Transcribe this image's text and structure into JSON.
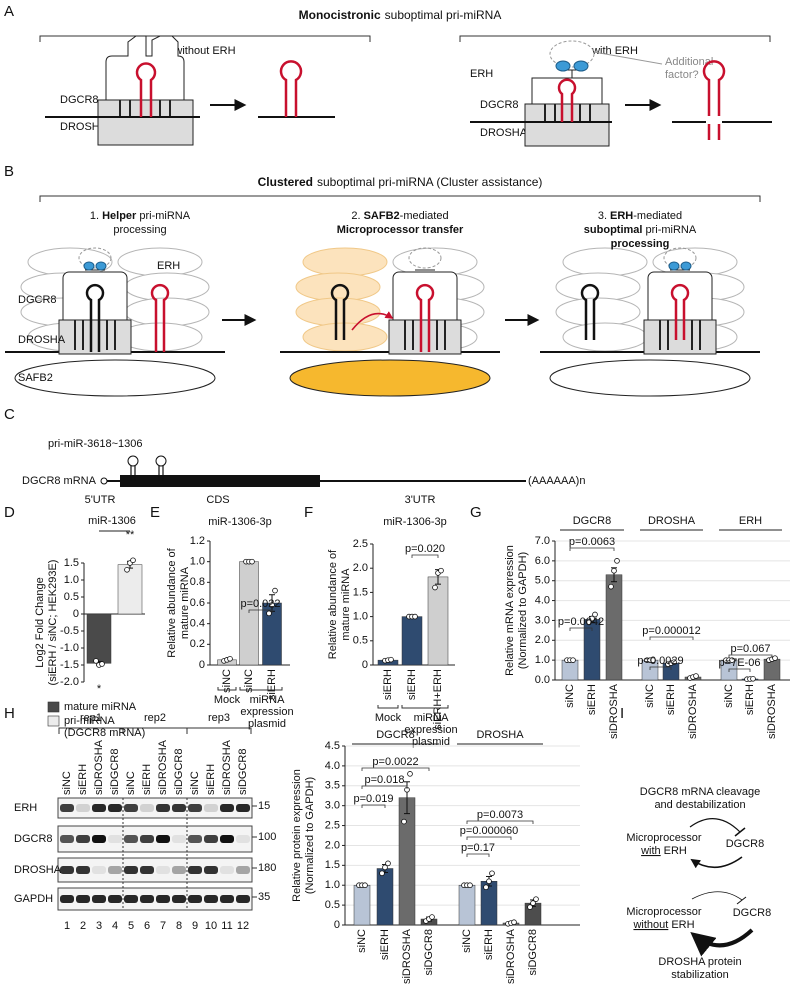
{
  "panel_labels": [
    "A",
    "B",
    "C",
    "D",
    "E",
    "F",
    "G",
    "H",
    "I"
  ],
  "panel_a": {
    "title": [
      "Monocistronic",
      "suboptimal pri-miRNA"
    ],
    "left_heading": "without ERH",
    "right_heading": "with ERH",
    "left_proteins": [
      "DGCR8",
      "DROSHA"
    ],
    "right_proteins": [
      "DGCR8",
      "DROSHA"
    ],
    "erh": "ERH",
    "factor": [
      "Additional",
      "factor?"
    ]
  },
  "panel_b": {
    "title": [
      "Clustered",
      "suboptimal pri-miRNA (Cluster assistance)"
    ],
    "steps": [
      [
        [
          {
            "text": "1.",
            "bold": false
          },
          {
            "text": "Helper",
            "bold": true
          },
          {
            "text": "pri-miRNA",
            "bold": false
          }
        ],
        [
          {
            "text": "processing",
            "bold": false
          }
        ]
      ],
      [
        [
          {
            "text": "2.",
            "bold": false
          },
          {
            "text": "SAFB2",
            "bold": true
          },
          {
            "text": "-mediated",
            "bold": false
          }
        ],
        [
          {
            "text": "Microprocessor transfer",
            "bold": true
          }
        ]
      ],
      [
        [
          {
            "text": "3.",
            "bold": false
          },
          {
            "text": "ERH",
            "bold": true
          },
          {
            "text": "-mediated",
            "bold": false
          }
        ],
        [
          {
            "text": "suboptimal",
            "bold": true
          },
          {
            "text": "pri-miRNA",
            "bold": false
          }
        ],
        [
          {
            "text": "processing",
            "bold": true
          }
        ]
      ]
    ],
    "labels": [
      "ERH",
      "DGCR8",
      "DROSHA",
      "SAFB2"
    ]
  },
  "panel_c": {
    "mirna": "pri-miR-3618~1306",
    "gene": "DGCR8 mRNA",
    "regions": [
      "5'UTR",
      "CDS",
      "3'UTR"
    ],
    "polya": "(AAAAAA)n"
  },
  "panel_h_blot": {
    "replicates": [
      "rep1",
      "rep2",
      "rep3"
    ],
    "lanes": [
      "siNC",
      "siERH",
      "siDROSHA",
      "siDGCR8",
      "siNC",
      "siERH",
      "siDROSHA",
      "siDGCR8",
      "siNC",
      "siERH",
      "siDROSHA",
      "siDGCR8"
    ],
    "proteins": [
      "ERH",
      "DGCR8",
      "DROSHA",
      "GAPDH"
    ],
    "markers": [
      15,
      100,
      180,
      35
    ],
    "lane_numbers": [
      1,
      2,
      3,
      4,
      5,
      6,
      7,
      8,
      9,
      10,
      11,
      12
    ]
  },
  "panel_i": {
    "top": [
      "DGCR8 mRNA cleavage",
      "and destabilization"
    ],
    "upper_complex": [
      "Microprocessor",
      "with",
      "ERH"
    ],
    "upper_target": "DGCR8",
    "lower_complex": [
      "Microprocessor",
      "without",
      "ERH"
    ],
    "lower_target": "DGCR8",
    "bottom": [
      "DROSHA protein",
      "stabilization"
    ]
  },
  "chart_data": [
    {
      "type": "bar",
      "title": "miR-1306",
      "y_label": [
        "Log2 Fold Change",
        "(siERH / siNC; HEK293E)"
      ],
      "categories": [
        null
      ],
      "ylim": [
        -2,
        1.5
      ],
      "yticks": [
        {
          "value": -2,
          "label": "-2.0"
        },
        -1.5,
        {
          "value": -1,
          "label": "-1.0"
        },
        -0.5,
        0,
        0.5,
        {
          "value": 1,
          "label": "1.0"
        },
        1.5
      ],
      "series": [
        {
          "name": "mature miRNA",
          "color": "#4a4a4a",
          "values": [
            -1.45
          ],
          "errors": [
            0.05
          ],
          "points": [
            [
              -1.38,
              -1.5,
              -1.47
            ]
          ],
          "significance": [
            "*"
          ]
        },
        {
          "name": "pri-miRNA",
          "name_detail": "(DGCR8 mRNA)",
          "color": "#ececec",
          "values": [
            1.45
          ],
          "errors": [
            0.1
          ],
          "points": [
            [
              1.3,
              1.5,
              1.58
            ]
          ],
          "significance": [
            "**"
          ]
        }
      ]
    },
    {
      "type": "bar",
      "title": "miR-1306-3p",
      "y_label": [
        "Relative abundance of",
        "mature miRNA"
      ],
      "ylim": [
        0,
        1.2
      ],
      "yticks": [
        0,
        0.2,
        0.4,
        0.6,
        0.8,
        {
          "value": 1,
          "label": "1.0"
        },
        1.2
      ],
      "groups": [
        {
          "categories": [
            "siNC",
            "siNC",
            "siERH"
          ],
          "values": [
            0.05,
            1.0,
            0.6
          ],
          "errors": [
            0.01,
            0,
            0.08
          ],
          "points": [
            [
              0.04,
              0.05,
              0.06
            ],
            [
              1.0,
              1.0,
              1.0
            ],
            [
              0.5,
              0.58,
              0.72
            ]
          ],
          "colors": [
            "#cfcfcf",
            "#cfcfcf",
            "#2f4b70"
          ]
        }
      ],
      "plasmids": [
        "Mock",
        [
          "miRNA",
          "expression",
          "plasmid"
        ]
      ],
      "annotations": [
        "p=0.022"
      ]
    },
    {
      "type": "bar",
      "title": "miR-1306-3p",
      "y_label": [
        "Relative abundance of",
        "mature miRNA"
      ],
      "ylim": [
        0,
        2.5
      ],
      "yticks": [
        0,
        0.5,
        {
          "value": 1,
          "label": "1.0"
        },
        1.5,
        {
          "value": 2,
          "label": "2.0"
        },
        2.5
      ],
      "groups": [
        {
          "categories": [
            "siERH",
            "siERH",
            "siERH+ERH"
          ],
          "values": [
            0.1,
            1.0,
            1.82
          ],
          "errors": [
            0.01,
            0,
            0.15
          ],
          "points": [
            [
              0.09,
              0.1,
              0.11
            ],
            [
              1.0,
              1.0,
              1.0
            ],
            [
              1.6,
              1.9,
              1.95
            ]
          ],
          "colors": [
            "#2f4b70",
            "#2f4b70",
            "#cfcfcf"
          ]
        }
      ],
      "plasmids": [
        "Mock",
        [
          "miRNA",
          "expression",
          "plasmid"
        ]
      ],
      "annotations": [
        "p=0.020"
      ]
    },
    {
      "type": "bar",
      "y_label": [
        "Relative mRNA expression",
        "(Normalized to GAPDH)"
      ],
      "grid": true,
      "ylim": [
        0,
        7
      ],
      "yticks": [
        {
          "value": 0,
          "label": "0.0"
        },
        {
          "value": 1,
          "label": "1.0"
        },
        {
          "value": 2,
          "label": "2.0"
        },
        {
          "value": 3,
          "label": "3.0"
        },
        {
          "value": 4,
          "label": "4.0"
        },
        {
          "value": 5,
          "label": "5.0"
        },
        {
          "value": 6,
          "label": "6.0"
        },
        {
          "value": 7,
          "label": "7.0"
        }
      ],
      "groups": [
        {
          "name": "DGCR8",
          "categories": [
            "siNC",
            "siERH",
            "siDROSHA"
          ],
          "values": [
            1.0,
            3.05,
            5.3
          ],
          "errors": [
            0,
            0.15,
            0.35
          ],
          "points": [
            [
              1.0,
              1.0,
              1.0
            ],
            [
              2.9,
              3.1,
              3.3
            ],
            [
              4.7,
              5.5,
              6.0
            ]
          ],
          "colors": [
            "#b8c4d6",
            "#2f4b70",
            "#6b6b6b"
          ]
        },
        {
          "name": "DROSHA",
          "categories": [
            "siNC",
            "siERH",
            "siDROSHA"
          ],
          "values": [
            1.0,
            0.85,
            0.15
          ],
          "errors": [
            0,
            0.05,
            0.05
          ],
          "points": [
            [
              1.0,
              1.0,
              1.0
            ],
            [
              0.8,
              0.85,
              0.9
            ],
            [
              0.1,
              0.15,
              0.2
            ]
          ],
          "colors": [
            "#b8c4d6",
            "#2f4b70",
            "#6b6b6b"
          ]
        },
        {
          "name": "ERH",
          "categories": [
            "siNC",
            "siERH",
            "siDROSHA"
          ],
          "values": [
            1.0,
            0.05,
            1.05
          ],
          "errors": [
            0,
            0.01,
            0.04
          ],
          "points": [
            [
              1.0,
              1.0,
              1.0
            ],
            [
              0.04,
              0.05,
              0.06
            ],
            [
              1.0,
              1.05,
              1.1
            ]
          ],
          "colors": [
            "#b8c4d6",
            "#2f4b70",
            "#6b6b6b"
          ]
        }
      ],
      "annotations": [
        "p=0.0063",
        "p=0.0042",
        "p=0.000012",
        "p=0.0029",
        "p=0.067",
        "p=7E-06"
      ]
    },
    {
      "type": "bar",
      "y_label": [
        "Relative protein expression",
        "(Normalized to GAPDH)"
      ],
      "grid": true,
      "ylim": [
        0,
        4.5
      ],
      "yticks": [
        0,
        0.5,
        {
          "value": 1,
          "label": "1.0"
        },
        1.5,
        {
          "value": 2,
          "label": "2.0"
        },
        2.5,
        {
          "value": 3,
          "label": "3.0"
        },
        3.5,
        {
          "value": 4,
          "label": "4.0"
        },
        4.5
      ],
      "groups": [
        {
          "name": "DGCR8",
          "categories": [
            "siNC",
            "siERH",
            "siDROSHA",
            "siDGCR8"
          ],
          "values": [
            1.0,
            1.42,
            3.2,
            0.15
          ],
          "errors": [
            0,
            0.1,
            0.4,
            0.05
          ],
          "points": [
            [
              1.0,
              1.0,
              1.0
            ],
            [
              1.3,
              1.45,
              1.55
            ],
            [
              2.6,
              3.4,
              3.8
            ],
            [
              0.1,
              0.15,
              0.2
            ]
          ],
          "colors": [
            "#b8c4d6",
            "#2f4b70",
            "#6b6b6b",
            "#4d4d4d"
          ]
        },
        {
          "name": "DROSHA",
          "categories": [
            "siNC",
            "siERH",
            "siDROSHA",
            "siDGCR8"
          ],
          "values": [
            1.0,
            1.1,
            0.05,
            0.55
          ],
          "errors": [
            0,
            0.12,
            0.02,
            0.08
          ],
          "points": [
            [
              1.0,
              1.0,
              1.0
            ],
            [
              0.95,
              1.1,
              1.3
            ],
            [
              0.03,
              0.05,
              0.07
            ],
            [
              0.45,
              0.55,
              0.65
            ]
          ],
          "colors": [
            "#b8c4d6",
            "#2f4b70",
            "#6b6b6b",
            "#4d4d4d"
          ]
        }
      ],
      "annotations": [
        "p=0.0022",
        "p=0.018",
        "p=0.019",
        "p=0.0073",
        "p=0.000060",
        "p=0.17"
      ]
    }
  ]
}
